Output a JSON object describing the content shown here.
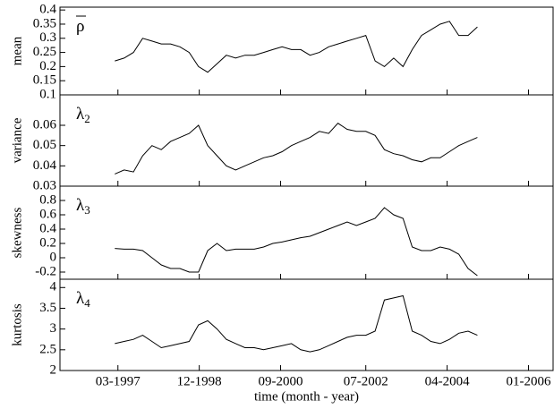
{
  "chart_data": [
    {
      "type": "line",
      "ylabel": "mean",
      "annotation": "ρ",
      "color": "#000000",
      "x": [
        1997.1,
        1997.3,
        1997.5,
        1997.7,
        1997.9,
        1998.1,
        1998.3,
        1998.5,
        1998.7,
        1998.9,
        1999.1,
        1999.3,
        1999.5,
        1999.7,
        1999.9,
        2000.1,
        2000.3,
        2000.5,
        2000.7,
        2000.9,
        2001.1,
        2001.3,
        2001.5,
        2001.7,
        2001.9,
        2002.1,
        2002.3,
        2002.5,
        2002.7,
        2002.9,
        2003.1,
        2003.3,
        2003.5,
        2003.7,
        2003.9,
        2004.1,
        2004.3,
        2004.5,
        2004.7,
        2004.9
      ],
      "values": [
        0.22,
        0.23,
        0.25,
        0.3,
        0.29,
        0.28,
        0.28,
        0.27,
        0.25,
        0.2,
        0.18,
        0.21,
        0.24,
        0.23,
        0.24,
        0.24,
        0.25,
        0.26,
        0.27,
        0.26,
        0.26,
        0.24,
        0.25,
        0.27,
        0.28,
        0.29,
        0.3,
        0.31,
        0.22,
        0.2,
        0.23,
        0.2,
        0.26,
        0.31,
        0.33,
        0.35,
        0.36,
        0.31,
        0.31,
        0.34
      ],
      "xlim": [
        1995.92,
        2006.53
      ],
      "ylim": [
        0.1,
        0.41
      ],
      "yticks": [
        0.1,
        0.15,
        0.2,
        0.25,
        0.3,
        0.35,
        0.4
      ]
    },
    {
      "type": "line",
      "ylabel": "variance",
      "annotation": "λ",
      "annotation_sub": "2",
      "color": "#000000",
      "x": [
        1997.1,
        1997.3,
        1997.5,
        1997.7,
        1997.9,
        1998.1,
        1998.3,
        1998.5,
        1998.7,
        1998.9,
        1999.1,
        1999.3,
        1999.5,
        1999.7,
        1999.9,
        2000.1,
        2000.3,
        2000.5,
        2000.7,
        2000.9,
        2001.1,
        2001.3,
        2001.5,
        2001.7,
        2001.9,
        2002.1,
        2002.3,
        2002.5,
        2002.7,
        2002.9,
        2003.1,
        2003.3,
        2003.5,
        2003.7,
        2003.9,
        2004.1,
        2004.3,
        2004.5,
        2004.7,
        2004.9
      ],
      "values": [
        0.036,
        0.038,
        0.037,
        0.045,
        0.05,
        0.048,
        0.052,
        0.054,
        0.056,
        0.06,
        0.05,
        0.045,
        0.04,
        0.038,
        0.04,
        0.042,
        0.044,
        0.045,
        0.047,
        0.05,
        0.052,
        0.054,
        0.057,
        0.056,
        0.061,
        0.058,
        0.057,
        0.057,
        0.055,
        0.048,
        0.046,
        0.045,
        0.043,
        0.042,
        0.044,
        0.044,
        0.047,
        0.05,
        0.052,
        0.054
      ],
      "xlim": [
        1995.92,
        2006.53
      ],
      "ylim": [
        0.03,
        0.075
      ],
      "yticks": [
        0.03,
        0.04,
        0.05,
        0.06
      ]
    },
    {
      "type": "line",
      "ylabel": "skewness",
      "annotation": "λ",
      "annotation_sub": "3",
      "color": "#000000",
      "x": [
        1997.1,
        1997.3,
        1997.5,
        1997.7,
        1997.9,
        1998.1,
        1998.3,
        1998.5,
        1998.7,
        1998.9,
        1999.1,
        1999.3,
        1999.5,
        1999.7,
        1999.9,
        2000.1,
        2000.3,
        2000.5,
        2000.7,
        2000.9,
        2001.1,
        2001.3,
        2001.5,
        2001.7,
        2001.9,
        2002.1,
        2002.3,
        2002.5,
        2002.7,
        2002.9,
        2003.1,
        2003.3,
        2003.5,
        2003.7,
        2003.9,
        2004.1,
        2004.3,
        2004.5,
        2004.7,
        2004.9
      ],
      "values": [
        0.13,
        0.12,
        0.12,
        0.1,
        0.0,
        -0.1,
        -0.15,
        -0.15,
        -0.2,
        -0.2,
        0.1,
        0.2,
        0.1,
        0.12,
        0.12,
        0.12,
        0.15,
        0.2,
        0.22,
        0.25,
        0.28,
        0.3,
        0.35,
        0.4,
        0.45,
        0.5,
        0.45,
        0.5,
        0.55,
        0.7,
        0.6,
        0.55,
        0.15,
        0.1,
        0.1,
        0.15,
        0.12,
        0.05,
        -0.15,
        -0.25
      ],
      "xlim": [
        1995.92,
        2006.53
      ],
      "ylim": [
        -0.3,
        1.0
      ],
      "yticks": [
        -0.2,
        0,
        0.2,
        0.4,
        0.6,
        0.8
      ]
    },
    {
      "type": "line",
      "ylabel": "kurtosis",
      "annotation": "λ",
      "annotation_sub": "4",
      "color": "#000000",
      "x": [
        1997.1,
        1997.3,
        1997.5,
        1997.7,
        1997.9,
        1998.1,
        1998.3,
        1998.5,
        1998.7,
        1998.9,
        1999.1,
        1999.3,
        1999.5,
        1999.7,
        1999.9,
        2000.1,
        2000.3,
        2000.5,
        2000.7,
        2000.9,
        2001.1,
        2001.3,
        2001.5,
        2001.7,
        2001.9,
        2002.1,
        2002.3,
        2002.5,
        2002.7,
        2002.9,
        2003.1,
        2003.3,
        2003.5,
        2003.7,
        2003.9,
        2004.1,
        2004.3,
        2004.5,
        2004.7,
        2004.9
      ],
      "values": [
        2.65,
        2.7,
        2.75,
        2.85,
        2.7,
        2.55,
        2.6,
        2.65,
        2.7,
        3.1,
        3.2,
        3.0,
        2.75,
        2.65,
        2.55,
        2.55,
        2.5,
        2.55,
        2.6,
        2.65,
        2.5,
        2.45,
        2.5,
        2.6,
        2.7,
        2.8,
        2.85,
        2.85,
        2.95,
        3.7,
        3.75,
        3.8,
        2.95,
        2.85,
        2.7,
        2.65,
        2.75,
        2.9,
        2.95,
        2.85
      ],
      "xlim": [
        1995.92,
        2006.53
      ],
      "ylim": [
        2,
        4.2
      ],
      "yticks": [
        2,
        2.5,
        3,
        3.5,
        4
      ],
      "xlabel": "time (month - year)",
      "xticks": [
        {
          "value": 1997.167,
          "label": "03-1997"
        },
        {
          "value": 1998.917,
          "label": "12-1998"
        },
        {
          "value": 2000.667,
          "label": "09-2000"
        },
        {
          "value": 2002.5,
          "label": "07-2002"
        },
        {
          "value": 2004.25,
          "label": "04-2004"
        },
        {
          "value": 2006.0,
          "label": "01-2006"
        }
      ]
    }
  ]
}
